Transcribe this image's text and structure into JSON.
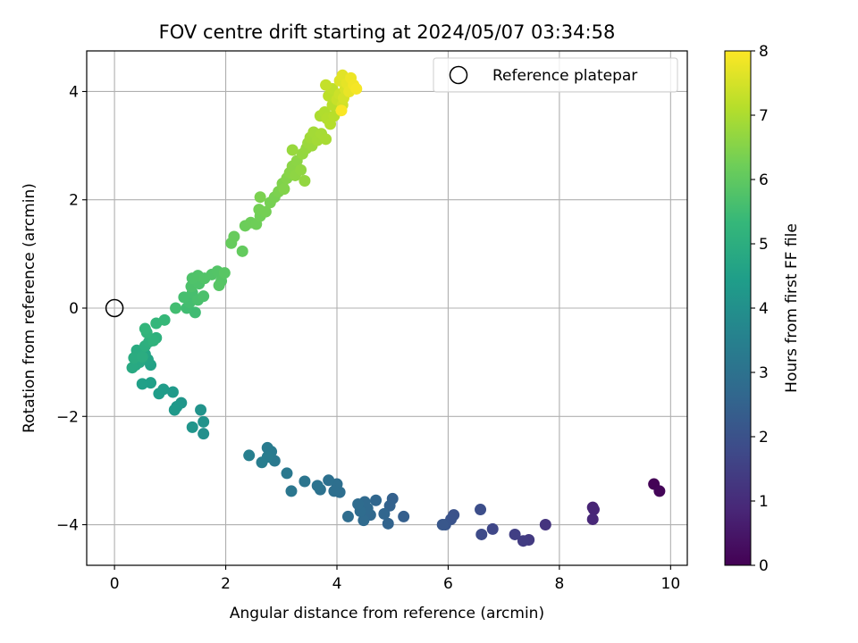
{
  "chart_data": {
    "type": "scatter",
    "title": "FOV centre drift starting at 2024/05/07 03:34:58",
    "xlabel": "Angular distance from reference (arcmin)",
    "ylabel": "Rotation from reference (arcmin)",
    "xlim": [
      -0.5,
      10.3
    ],
    "ylim": [
      -4.75,
      4.75
    ],
    "xticks": [
      0,
      2,
      4,
      6,
      8,
      10
    ],
    "yticks": [
      -4,
      -2,
      0,
      2,
      4
    ],
    "xtick_labels": [
      "0",
      "2",
      "4",
      "6",
      "8",
      "10"
    ],
    "ytick_labels": [
      "−4",
      "−2",
      "0",
      "2",
      "4"
    ],
    "grid": true,
    "legend": {
      "placement": "top-right",
      "entries": [
        "Reference platepar"
      ]
    },
    "reference_point": {
      "x": 0,
      "y": 0,
      "label": "Reference platepar"
    },
    "colorbar": {
      "label": "Hours from first FF file",
      "range": [
        0,
        8
      ],
      "ticks": [
        0,
        1,
        2,
        3,
        4,
        5,
        6,
        7,
        8
      ],
      "tick_labels": [
        "0",
        "1",
        "2",
        "3",
        "4",
        "5",
        "6",
        "7",
        "8"
      ],
      "colormap": "viridis"
    },
    "points": [
      {
        "x": 9.7,
        "y": -3.25,
        "h": 0.05
      },
      {
        "x": 9.8,
        "y": -3.38,
        "h": 0.1
      },
      {
        "x": 8.6,
        "y": -3.68,
        "h": 0.8
      },
      {
        "x": 8.62,
        "y": -3.72,
        "h": 0.85
      },
      {
        "x": 8.6,
        "y": -3.9,
        "h": 0.9
      },
      {
        "x": 7.75,
        "y": -4.0,
        "h": 1.2
      },
      {
        "x": 7.45,
        "y": -4.28,
        "h": 1.35
      },
      {
        "x": 7.35,
        "y": -4.3,
        "h": 1.4
      },
      {
        "x": 7.2,
        "y": -4.18,
        "h": 1.5
      },
      {
        "x": 6.8,
        "y": -4.08,
        "h": 1.7
      },
      {
        "x": 6.6,
        "y": -4.18,
        "h": 1.8
      },
      {
        "x": 6.58,
        "y": -3.72,
        "h": 1.9
      },
      {
        "x": 6.1,
        "y": -3.82,
        "h": 2.0
      },
      {
        "x": 6.05,
        "y": -3.9,
        "h": 2.05
      },
      {
        "x": 5.95,
        "y": -4.0,
        "h": 2.1
      },
      {
        "x": 5.9,
        "y": -4.0,
        "h": 2.15
      },
      {
        "x": 5.2,
        "y": -3.85,
        "h": 2.4
      },
      {
        "x": 5.0,
        "y": -3.52,
        "h": 2.45
      },
      {
        "x": 4.95,
        "y": -3.65,
        "h": 2.5
      },
      {
        "x": 4.92,
        "y": -3.98,
        "h": 2.55
      },
      {
        "x": 4.85,
        "y": -3.8,
        "h": 2.6
      },
      {
        "x": 4.7,
        "y": -3.55,
        "h": 2.65
      },
      {
        "x": 4.6,
        "y": -3.82,
        "h": 2.7
      },
      {
        "x": 4.55,
        "y": -3.7,
        "h": 2.72
      },
      {
        "x": 4.5,
        "y": -3.58,
        "h": 2.75
      },
      {
        "x": 4.48,
        "y": -3.92,
        "h": 2.78
      },
      {
        "x": 4.42,
        "y": -3.75,
        "h": 2.8
      },
      {
        "x": 4.38,
        "y": -3.62,
        "h": 2.82
      },
      {
        "x": 4.2,
        "y": -3.85,
        "h": 2.85
      },
      {
        "x": 4.05,
        "y": -3.4,
        "h": 2.88
      },
      {
        "x": 4.0,
        "y": -3.25,
        "h": 2.9
      },
      {
        "x": 3.95,
        "y": -3.38,
        "h": 2.92
      },
      {
        "x": 3.85,
        "y": -3.18,
        "h": 2.95
      },
      {
        "x": 3.7,
        "y": -3.35,
        "h": 3.0
      },
      {
        "x": 3.65,
        "y": -3.28,
        "h": 3.05
      },
      {
        "x": 3.42,
        "y": -3.2,
        "h": 3.1
      },
      {
        "x": 3.18,
        "y": -3.38,
        "h": 3.15
      },
      {
        "x": 3.1,
        "y": -3.05,
        "h": 3.2
      },
      {
        "x": 2.88,
        "y": -2.82,
        "h": 3.25
      },
      {
        "x": 2.82,
        "y": -2.65,
        "h": 3.3
      },
      {
        "x": 2.75,
        "y": -2.58,
        "h": 3.32
      },
      {
        "x": 2.75,
        "y": -2.75,
        "h": 3.35
      },
      {
        "x": 2.65,
        "y": -2.85,
        "h": 3.38
      },
      {
        "x": 2.42,
        "y": -2.72,
        "h": 3.45
      },
      {
        "x": 1.6,
        "y": -2.32,
        "h": 4.0
      },
      {
        "x": 1.6,
        "y": -2.1,
        "h": 4.05
      },
      {
        "x": 1.55,
        "y": -1.88,
        "h": 4.1
      },
      {
        "x": 1.4,
        "y": -2.2,
        "h": 4.15
      },
      {
        "x": 1.2,
        "y": -1.75,
        "h": 4.2
      },
      {
        "x": 1.12,
        "y": -1.82,
        "h": 4.25
      },
      {
        "x": 1.08,
        "y": -1.88,
        "h": 4.28
      },
      {
        "x": 1.05,
        "y": -1.55,
        "h": 4.32
      },
      {
        "x": 0.88,
        "y": -1.5,
        "h": 4.38
      },
      {
        "x": 0.8,
        "y": -1.58,
        "h": 4.42
      },
      {
        "x": 0.65,
        "y": -1.38,
        "h": 4.48
      },
      {
        "x": 0.5,
        "y": -1.4,
        "h": 4.52
      },
      {
        "x": 0.65,
        "y": -1.05,
        "h": 4.6
      },
      {
        "x": 0.6,
        "y": -0.95,
        "h": 4.65
      },
      {
        "x": 0.55,
        "y": -0.85,
        "h": 4.7
      },
      {
        "x": 0.45,
        "y": -1.0,
        "h": 4.75
      },
      {
        "x": 0.38,
        "y": -1.05,
        "h": 4.8
      },
      {
        "x": 0.32,
        "y": -1.1,
        "h": 4.85
      },
      {
        "x": 0.4,
        "y": -0.78,
        "h": 4.9
      },
      {
        "x": 0.35,
        "y": -0.92,
        "h": 4.92
      },
      {
        "x": 0.5,
        "y": -0.9,
        "h": 4.95
      },
      {
        "x": 0.55,
        "y": -0.7,
        "h": 5.0
      },
      {
        "x": 0.62,
        "y": -0.62,
        "h": 5.05
      },
      {
        "x": 0.75,
        "y": -0.55,
        "h": 5.1
      },
      {
        "x": 0.7,
        "y": -0.6,
        "h": 5.15
      },
      {
        "x": 0.58,
        "y": -0.45,
        "h": 5.2
      },
      {
        "x": 0.55,
        "y": -0.38,
        "h": 5.25
      },
      {
        "x": 0.75,
        "y": -0.28,
        "h": 5.3
      },
      {
        "x": 0.9,
        "y": -0.22,
        "h": 5.35
      },
      {
        "x": 1.45,
        "y": -0.08,
        "h": 5.5
      },
      {
        "x": 1.3,
        "y": 0.0,
        "h": 5.52
      },
      {
        "x": 1.1,
        "y": 0.0,
        "h": 5.55
      },
      {
        "x": 1.35,
        "y": 0.1,
        "h": 5.58
      },
      {
        "x": 1.25,
        "y": 0.2,
        "h": 5.6
      },
      {
        "x": 1.4,
        "y": 0.28,
        "h": 5.62
      },
      {
        "x": 1.5,
        "y": 0.15,
        "h": 5.65
      },
      {
        "x": 1.6,
        "y": 0.22,
        "h": 5.68
      },
      {
        "x": 1.38,
        "y": 0.4,
        "h": 5.7
      },
      {
        "x": 1.52,
        "y": 0.45,
        "h": 5.72
      },
      {
        "x": 1.4,
        "y": 0.55,
        "h": 5.74
      },
      {
        "x": 1.5,
        "y": 0.6,
        "h": 5.76
      },
      {
        "x": 1.62,
        "y": 0.55,
        "h": 5.78
      },
      {
        "x": 1.75,
        "y": 0.62,
        "h": 5.8
      },
      {
        "x": 1.85,
        "y": 0.68,
        "h": 5.82
      },
      {
        "x": 1.92,
        "y": 0.5,
        "h": 5.85
      },
      {
        "x": 1.88,
        "y": 0.42,
        "h": 5.88
      },
      {
        "x": 1.98,
        "y": 0.65,
        "h": 5.9
      },
      {
        "x": 2.3,
        "y": 1.05,
        "h": 6.05
      },
      {
        "x": 2.1,
        "y": 1.2,
        "h": 6.1
      },
      {
        "x": 2.15,
        "y": 1.32,
        "h": 6.12
      },
      {
        "x": 2.35,
        "y": 1.52,
        "h": 6.18
      },
      {
        "x": 2.45,
        "y": 1.58,
        "h": 6.2
      },
      {
        "x": 2.55,
        "y": 1.55,
        "h": 6.22
      },
      {
        "x": 2.62,
        "y": 1.7,
        "h": 6.25
      },
      {
        "x": 2.6,
        "y": 1.82,
        "h": 6.28
      },
      {
        "x": 2.72,
        "y": 1.78,
        "h": 6.3
      },
      {
        "x": 2.8,
        "y": 1.95,
        "h": 6.32
      },
      {
        "x": 2.88,
        "y": 2.05,
        "h": 6.35
      },
      {
        "x": 2.62,
        "y": 2.05,
        "h": 6.38
      },
      {
        "x": 2.95,
        "y": 2.15,
        "h": 6.4
      },
      {
        "x": 3.02,
        "y": 2.3,
        "h": 6.45
      },
      {
        "x": 3.05,
        "y": 2.2,
        "h": 6.48
      },
      {
        "x": 3.1,
        "y": 2.4,
        "h": 6.5
      },
      {
        "x": 3.15,
        "y": 2.5,
        "h": 6.55
      },
      {
        "x": 3.2,
        "y": 2.62,
        "h": 6.58
      },
      {
        "x": 3.28,
        "y": 2.72,
        "h": 6.6
      },
      {
        "x": 3.25,
        "y": 2.45,
        "h": 6.62
      },
      {
        "x": 3.35,
        "y": 2.55,
        "h": 6.65
      },
      {
        "x": 3.42,
        "y": 2.35,
        "h": 6.68
      },
      {
        "x": 3.38,
        "y": 2.85,
        "h": 6.7
      },
      {
        "x": 3.45,
        "y": 2.95,
        "h": 6.72
      },
      {
        "x": 3.2,
        "y": 2.92,
        "h": 6.75
      },
      {
        "x": 3.48,
        "y": 3.05,
        "h": 6.78
      },
      {
        "x": 3.55,
        "y": 3.0,
        "h": 6.8
      },
      {
        "x": 3.52,
        "y": 3.15,
        "h": 6.85
      },
      {
        "x": 3.58,
        "y": 3.25,
        "h": 6.88
      },
      {
        "x": 3.65,
        "y": 3.1,
        "h": 6.9
      },
      {
        "x": 3.72,
        "y": 3.22,
        "h": 6.92
      },
      {
        "x": 3.8,
        "y": 3.12,
        "h": 6.95
      },
      {
        "x": 3.7,
        "y": 3.55,
        "h": 7.0
      },
      {
        "x": 3.78,
        "y": 3.62,
        "h": 7.05
      },
      {
        "x": 3.82,
        "y": 3.5,
        "h": 7.08
      },
      {
        "x": 3.88,
        "y": 3.4,
        "h": 7.1
      },
      {
        "x": 3.95,
        "y": 3.55,
        "h": 7.12
      },
      {
        "x": 3.92,
        "y": 3.75,
        "h": 7.15
      },
      {
        "x": 3.85,
        "y": 3.92,
        "h": 7.2
      },
      {
        "x": 3.92,
        "y": 4.05,
        "h": 7.25
      },
      {
        "x": 3.8,
        "y": 4.12,
        "h": 7.3
      },
      {
        "x": 4.0,
        "y": 3.85,
        "h": 7.35
      },
      {
        "x": 4.05,
        "y": 3.95,
        "h": 7.4
      },
      {
        "x": 4.1,
        "y": 3.75,
        "h": 7.45
      },
      {
        "x": 4.12,
        "y": 3.88,
        "h": 7.5
      },
      {
        "x": 4.15,
        "y": 4.05,
        "h": 7.55
      },
      {
        "x": 4.05,
        "y": 4.2,
        "h": 7.6
      },
      {
        "x": 4.1,
        "y": 4.3,
        "h": 7.65
      },
      {
        "x": 4.18,
        "y": 4.15,
        "h": 7.7
      },
      {
        "x": 4.22,
        "y": 4.0,
        "h": 7.75
      },
      {
        "x": 4.25,
        "y": 4.25,
        "h": 7.8
      },
      {
        "x": 4.3,
        "y": 4.12,
        "h": 7.85
      },
      {
        "x": 4.35,
        "y": 4.05,
        "h": 7.9
      },
      {
        "x": 4.08,
        "y": 3.65,
        "h": 7.95
      }
    ]
  }
}
